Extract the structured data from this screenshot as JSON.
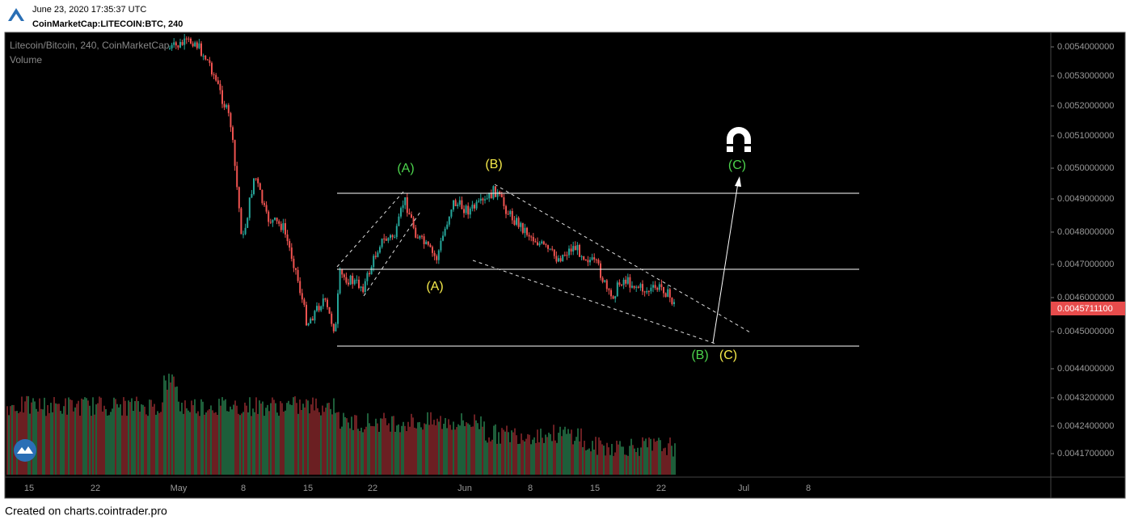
{
  "header": {
    "timestamp": "June 23, 2020 17:35:37 UTC",
    "symbol": "CoinMarketCap:LITECOIN:BTC, 240"
  },
  "legend": {
    "pair": "Litecoin/Bitcoin, 240, CoinMarketCap",
    "volume": "Volume"
  },
  "price_axis": [
    "0.0054000000",
    "0.0053000000",
    "0.0052000000",
    "0.0051000000",
    "0.0050000000",
    "0.0049000000",
    "0.0048000000",
    "0.0047000000",
    "0.0046000000",
    "0.0045000000",
    "0.0044000000",
    "0.0043200000",
    "0.0042400000",
    "0.0041700000"
  ],
  "current_price": "0.0045711100",
  "date_axis": [
    "15",
    "22",
    "May",
    "8",
    "15",
    "22",
    "Jun",
    "8",
    "15",
    "22",
    "Jul",
    "8"
  ],
  "annotations": [
    "(A)",
    "(B)",
    "(C)",
    "(A)",
    "(B)",
    "(C)"
  ],
  "footer": "Created on charts.cointrader.pro"
}
